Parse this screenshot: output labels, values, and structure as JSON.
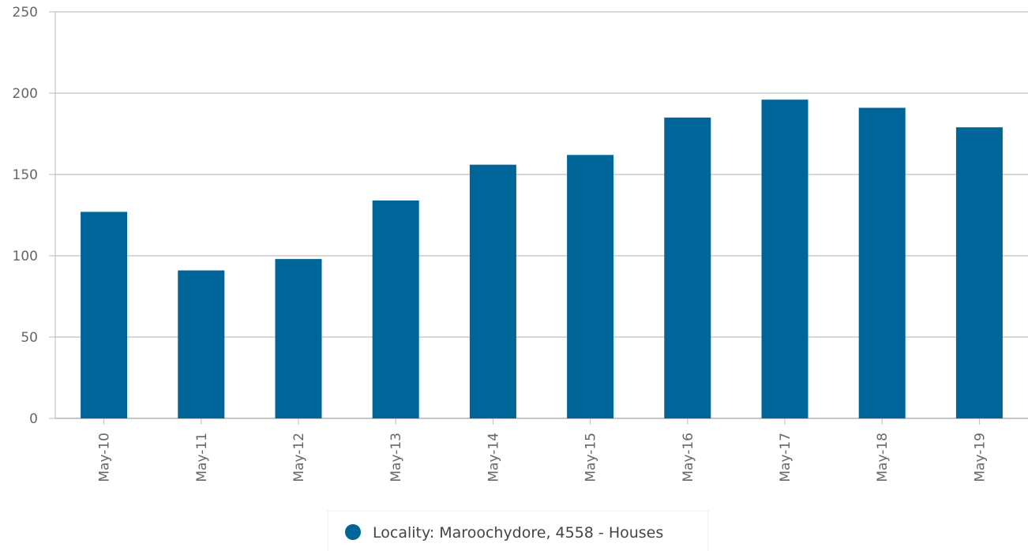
{
  "chart_data": {
    "type": "bar",
    "categories": [
      "May-10",
      "May-11",
      "May-12",
      "May-13",
      "May-14",
      "May-15",
      "May-16",
      "May-17",
      "May-18",
      "May-19"
    ],
    "series": [
      {
        "name": "Locality: Maroochydore, 4558 - Houses",
        "color": "#006699",
        "values": [
          127,
          91,
          98,
          134,
          156,
          162,
          185,
          196,
          191,
          179
        ]
      }
    ],
    "ylim": [
      0,
      250
    ],
    "yticks": [
      0,
      50,
      100,
      150,
      200,
      250
    ],
    "grid": true,
    "legend": "bottom"
  }
}
